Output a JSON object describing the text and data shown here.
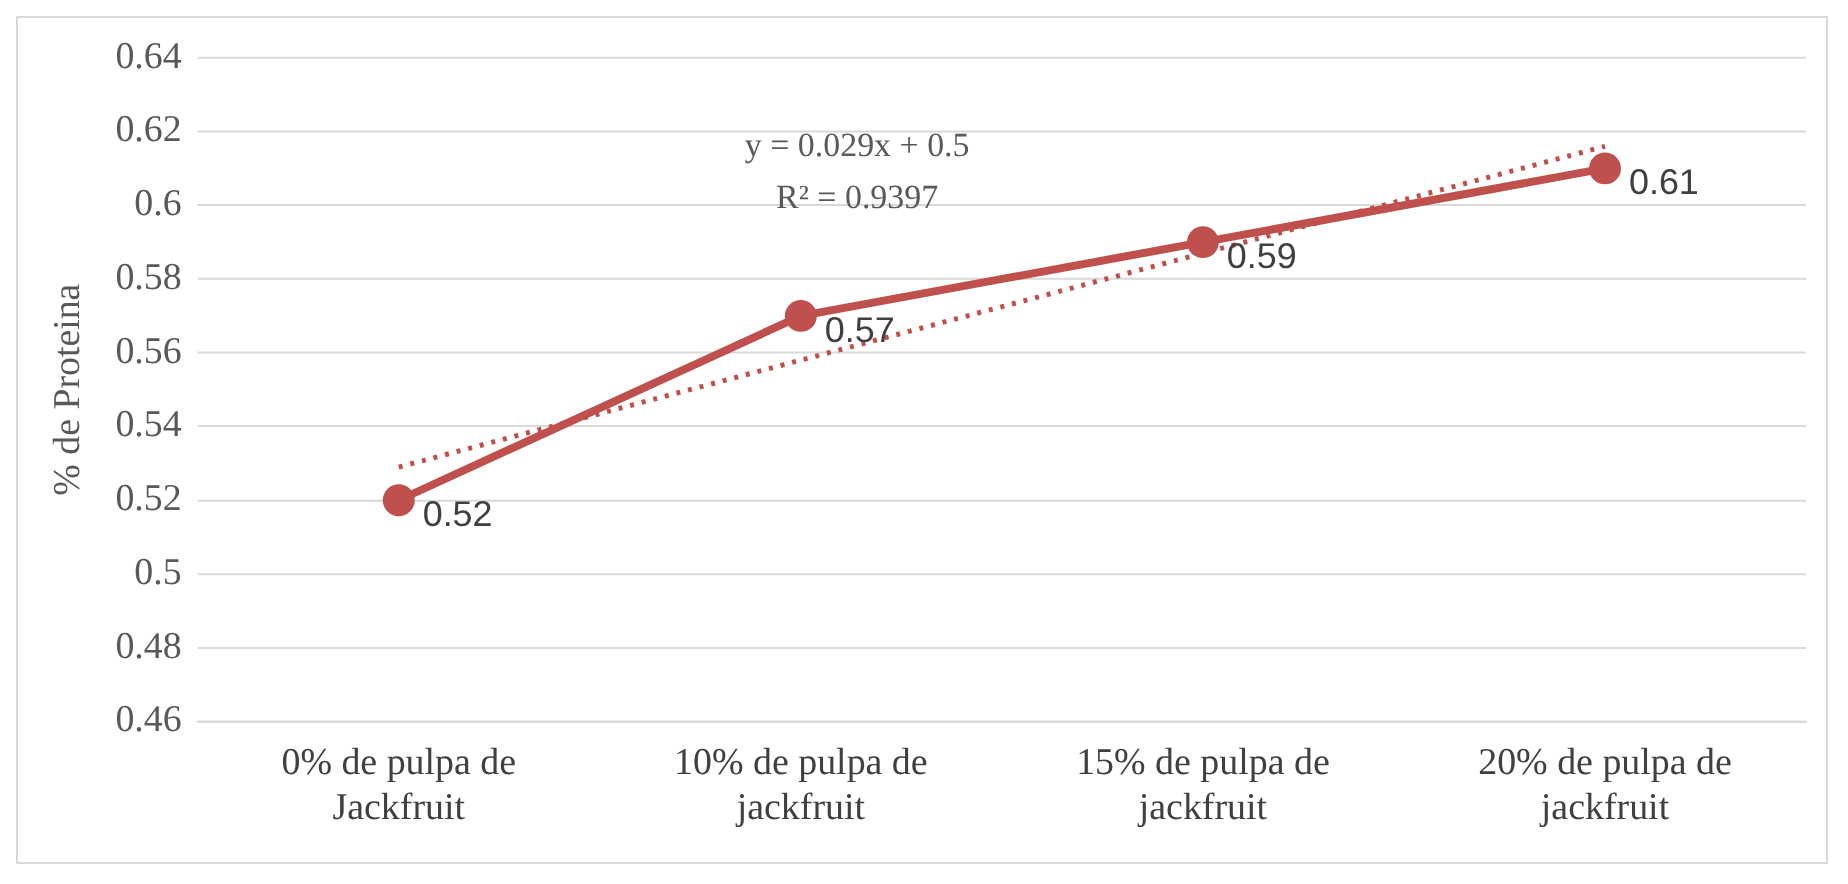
{
  "chart_data": {
    "type": "line",
    "ylabel": "% de Proteina",
    "categories": [
      "0% de pulpa de Jackfruit",
      "10% de pulpa de jackfruit",
      "15% de pulpa de jackfruit",
      "20% de pulpa de jackfruit"
    ],
    "series": [
      {
        "type": "line",
        "color": "#c0504d",
        "values": [
          0.52,
          0.57,
          0.59,
          0.61
        ],
        "value_labels": [
          "0.52",
          "0.57",
          "0.59",
          "0.61"
        ],
        "marker": "circle",
        "line_style": "solid"
      },
      {
        "type": "line",
        "color": "#c0504d",
        "values": [
          0.529,
          0.558,
          0.587,
          0.616
        ],
        "marker": "none",
        "line_style": "dotted"
      }
    ],
    "annotations": [
      "y = 0.029x + 0.5",
      "R² = 0.9397"
    ],
    "ylim": [
      0.46,
      0.64
    ],
    "yticks": [
      0.46,
      0.48,
      0.5,
      0.52,
      0.54,
      0.56,
      0.58,
      0.6,
      0.62,
      0.64
    ],
    "grid": "y",
    "legend": false
  }
}
